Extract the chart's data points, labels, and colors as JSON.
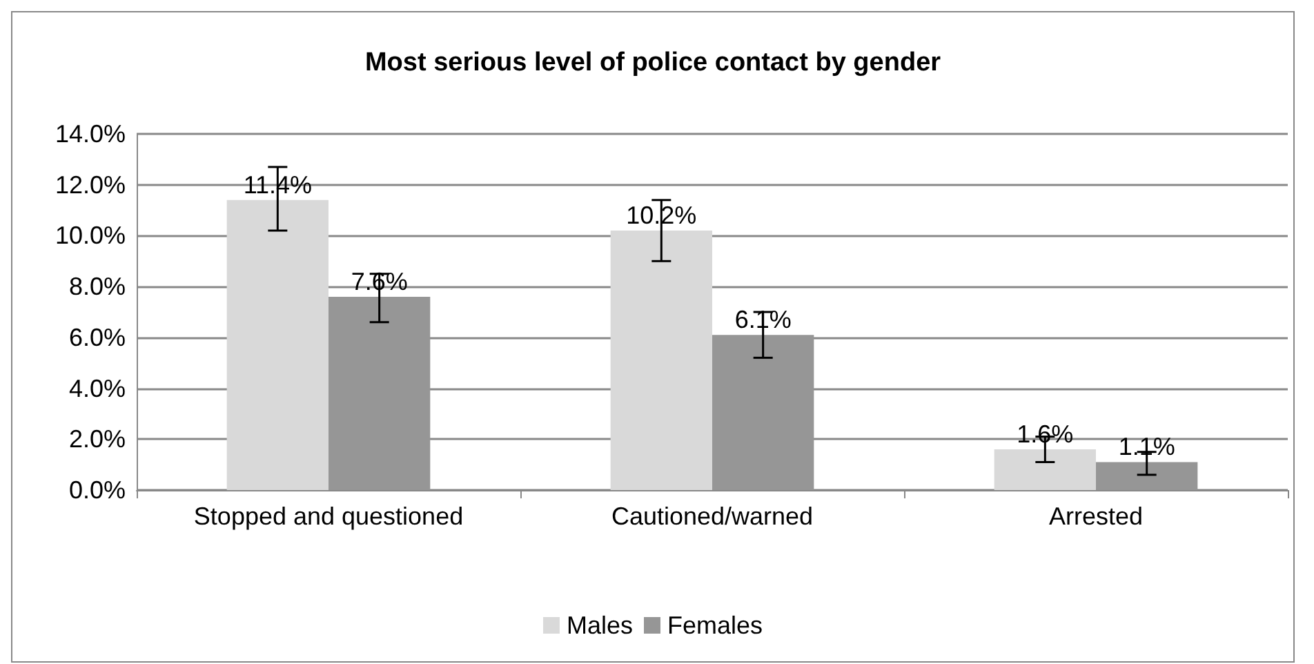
{
  "chart_data": {
    "type": "bar",
    "title": "Most serious level of police contact by gender",
    "categories": [
      "Stopped and questioned",
      "Cautioned/warned",
      "Arrested"
    ],
    "series": [
      {
        "name": "Males",
        "color": "#d9d9d9",
        "values": [
          11.4,
          10.2,
          1.6
        ],
        "value_labels": [
          "11.4%",
          "10.2%",
          "1.6%"
        ],
        "errors": [
          [
            10.2,
            12.7
          ],
          [
            9.0,
            11.4
          ],
          [
            1.1,
            2.1
          ]
        ]
      },
      {
        "name": "Females",
        "color": "#969696",
        "values": [
          7.6,
          6.1,
          1.1
        ],
        "value_labels": [
          "7.6%",
          "6.1%",
          "1.1%"
        ],
        "errors": [
          [
            6.6,
            8.5
          ],
          [
            5.2,
            7.0
          ],
          [
            0.6,
            1.5
          ]
        ]
      }
    ],
    "ylim": [
      0,
      14
    ],
    "yticks": [
      {
        "value": 0,
        "label": "0.0%"
      },
      {
        "value": 2,
        "label": "2.0%"
      },
      {
        "value": 4,
        "label": "4.0%"
      },
      {
        "value": 6,
        "label": "6.0%"
      },
      {
        "value": 8,
        "label": "8.0%"
      },
      {
        "value": 10,
        "label": "10.0%"
      },
      {
        "value": 12,
        "label": "12.0%"
      },
      {
        "value": 14,
        "label": "14.0%"
      }
    ],
    "grid": "y",
    "legend": "bottom"
  }
}
